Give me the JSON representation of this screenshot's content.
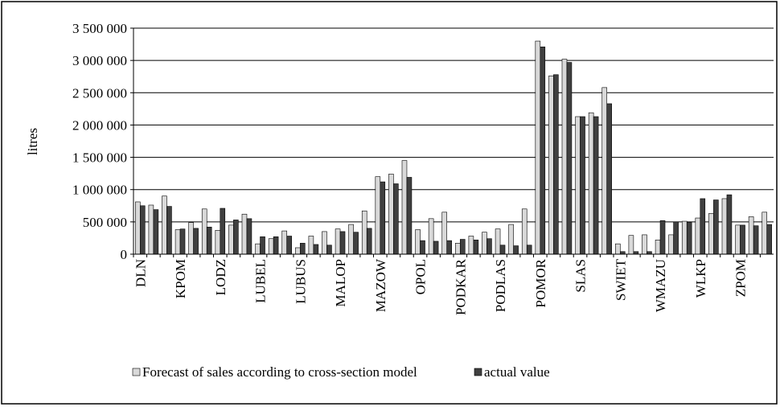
{
  "chart_data": {
    "type": "bar",
    "y_label": "litres",
    "categories": [
      "DLN",
      null,
      null,
      "KPOM",
      null,
      null,
      "LODZ",
      null,
      null,
      "LUBEL",
      null,
      null,
      "LUBUS",
      null,
      null,
      "MALOP",
      null,
      null,
      "MAZOW",
      null,
      null,
      "OPOL",
      null,
      null,
      "PODKAR",
      null,
      null,
      "PODLAS",
      null,
      null,
      "POMOR",
      null,
      null,
      "SLAS",
      null,
      null,
      "SWIET",
      null,
      null,
      "WMAZU",
      null,
      null,
      "WLKP",
      null,
      null,
      "ZPOM",
      null,
      null
    ],
    "series": [
      {
        "name": "Forecast of sales according to cross-section model",
        "color": "#d9d9d9",
        "values": [
          810000,
          760000,
          900000,
          380000,
          490000,
          700000,
          370000,
          450000,
          620000,
          160000,
          240000,
          360000,
          100000,
          280000,
          350000,
          390000,
          460000,
          670000,
          1200000,
          1240000,
          1450000,
          380000,
          550000,
          650000,
          170000,
          280000,
          340000,
          390000,
          460000,
          700000,
          3300000,
          2760000,
          3020000,
          2130000,
          2190000,
          2580000,
          160000,
          290000,
          300000,
          220000,
          300000,
          510000,
          560000,
          630000,
          860000,
          450000,
          580000,
          650000
        ]
      },
      {
        "name": "actual value",
        "color": "#404040",
        "values": [
          750000,
          690000,
          740000,
          390000,
          400000,
          420000,
          710000,
          530000,
          550000,
          270000,
          270000,
          280000,
          170000,
          150000,
          140000,
          350000,
          340000,
          400000,
          1120000,
          1090000,
          1190000,
          210000,
          200000,
          210000,
          230000,
          220000,
          240000,
          140000,
          130000,
          140000,
          3210000,
          2780000,
          2970000,
          2130000,
          2130000,
          2330000,
          40000,
          40000,
          40000,
          520000,
          500000,
          490000,
          860000,
          840000,
          920000,
          450000,
          440000,
          460000
        ]
      }
    ],
    "ylim": [
      0,
      3500000
    ],
    "yticks": [
      0,
      {
        "value": 500000,
        "label": "500 000"
      },
      {
        "value": 1000000,
        "label": "1 000 000"
      },
      {
        "value": 1500000,
        "label": "1 500 000"
      },
      {
        "value": 2000000,
        "label": "2 000 000"
      },
      {
        "value": 2500000,
        "label": "2 500 000"
      },
      {
        "value": 3000000,
        "label": "3 000 000"
      },
      {
        "value": 3500000,
        "label": "3 500 000"
      }
    ],
    "grid": true,
    "legend": "bottom"
  }
}
